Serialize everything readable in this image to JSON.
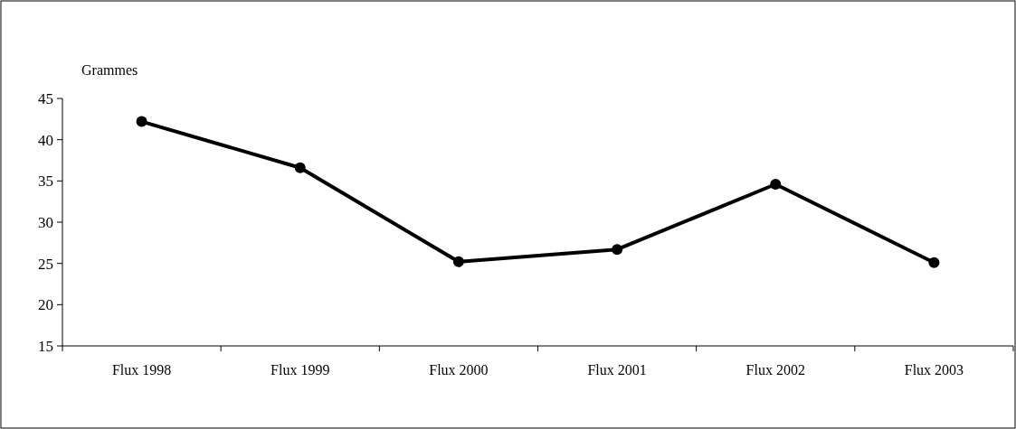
{
  "chart_data": {
    "type": "line",
    "ylabel": "Grammes",
    "categories": [
      "Flux 1998",
      "Flux 1999",
      "Flux 2000",
      "Flux 2001",
      "Flux 2002",
      "Flux 2003"
    ],
    "series": [
      {
        "color": "#000000",
        "values": [
          42.2,
          36.6,
          25.2,
          26.7,
          34.6,
          25.1
        ]
      }
    ],
    "ylim": [
      15,
      45
    ],
    "yticks": [
      15,
      20,
      25,
      30,
      35,
      40,
      45
    ],
    "marker": "circle",
    "line_style": "solid"
  }
}
